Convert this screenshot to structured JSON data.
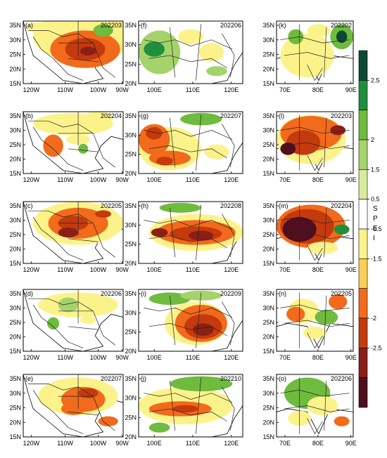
{
  "colorbar": {
    "title_letters": [
      "S",
      "P",
      "E",
      "I"
    ],
    "tick_labels": [
      "2.5",
      "2",
      "1.5",
      "0.5",
      "-0.5",
      "-1.5",
      "-2",
      "-2.5"
    ],
    "colors": [
      "#0a4a34",
      "#1f8f3c",
      "#6fbb3e",
      "#a5d36b",
      "#d8ec9c",
      "#ffffff",
      "#fbf38a",
      "#fbcf55",
      "#f26a1b",
      "#c43a0c",
      "#8a1f17",
      "#4f0f1f"
    ]
  },
  "columns": [
    {
      "x_ticks": [
        "120W",
        "110W",
        "100W",
        "90W"
      ],
      "y_ticks": [
        "35N",
        "30N",
        "25N",
        "20N",
        "15N"
      ],
      "panels": [
        {
          "letter": "(a)",
          "date": "202203"
        },
        {
          "letter": "(b)",
          "date": "202204"
        },
        {
          "letter": "(c)",
          "date": "202205"
        },
        {
          "letter": "(d)",
          "date": "202206"
        },
        {
          "letter": "(e)",
          "date": "202207"
        }
      ]
    },
    {
      "x_ticks": [
        "100E",
        "110E",
        "120E"
      ],
      "y_ticks": [
        "35N",
        "30N",
        "25N",
        "20N"
      ],
      "panels": [
        {
          "letter": "(f)",
          "date": "202206"
        },
        {
          "letter": "(g)",
          "date": "202207"
        },
        {
          "letter": "(h)",
          "date": "202208"
        },
        {
          "letter": "(i)",
          "date": "202209"
        },
        {
          "letter": "(j)",
          "date": "202210"
        }
      ]
    },
    {
      "x_ticks": [
        "70E",
        "80E",
        "90E"
      ],
      "y_ticks": [
        "35N",
        "30N",
        "25N",
        "20N",
        "15N"
      ],
      "panels": [
        {
          "letter": "(k)",
          "date": "202202"
        },
        {
          "letter": "(l)",
          "date": "202203"
        },
        {
          "letter": "(m)",
          "date": "202204"
        },
        {
          "letter": "(n)",
          "date": "202205"
        },
        {
          "letter": "(o)",
          "date": "202206"
        }
      ]
    }
  ]
}
